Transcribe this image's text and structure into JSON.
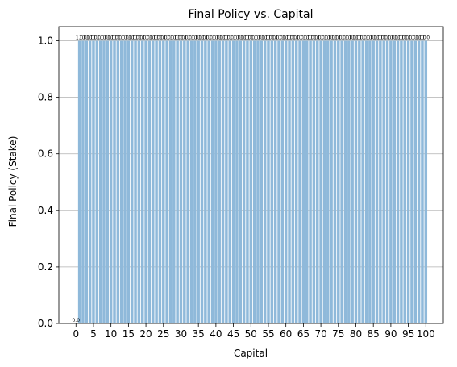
{
  "chart_data": {
    "type": "bar",
    "title": "Final Policy vs. Capital",
    "xlabel": "Capital",
    "ylabel": "Final Policy (Stake)",
    "x": [
      0,
      1,
      2,
      3,
      4,
      5,
      6,
      7,
      8,
      9,
      10,
      11,
      12,
      13,
      14,
      15,
      16,
      17,
      18,
      19,
      20,
      21,
      22,
      23,
      24,
      25,
      26,
      27,
      28,
      29,
      30,
      31,
      32,
      33,
      34,
      35,
      36,
      37,
      38,
      39,
      40,
      41,
      42,
      43,
      44,
      45,
      46,
      47,
      48,
      49,
      50,
      51,
      52,
      53,
      54,
      55,
      56,
      57,
      58,
      59,
      60,
      61,
      62,
      63,
      64,
      65,
      66,
      67,
      68,
      69,
      70,
      71,
      72,
      73,
      74,
      75,
      76,
      77,
      78,
      79,
      80,
      81,
      82,
      83,
      84,
      85,
      86,
      87,
      88,
      89,
      90,
      91,
      92,
      93,
      94,
      95,
      96,
      97,
      98,
      99,
      100
    ],
    "values": [
      0.0,
      1.0,
      1.0,
      1.0,
      1.0,
      1.0,
      1.0,
      1.0,
      1.0,
      1.0,
      1.0,
      1.0,
      1.0,
      1.0,
      1.0,
      1.0,
      1.0,
      1.0,
      1.0,
      1.0,
      1.0,
      1.0,
      1.0,
      1.0,
      1.0,
      1.0,
      1.0,
      1.0,
      1.0,
      1.0,
      1.0,
      1.0,
      1.0,
      1.0,
      1.0,
      1.0,
      1.0,
      1.0,
      1.0,
      1.0,
      1.0,
      1.0,
      1.0,
      1.0,
      1.0,
      1.0,
      1.0,
      1.0,
      1.0,
      1.0,
      1.0,
      1.0,
      1.0,
      1.0,
      1.0,
      1.0,
      1.0,
      1.0,
      1.0,
      1.0,
      1.0,
      1.0,
      1.0,
      1.0,
      1.0,
      1.0,
      1.0,
      1.0,
      1.0,
      1.0,
      1.0,
      1.0,
      1.0,
      1.0,
      1.0,
      1.0,
      1.0,
      1.0,
      1.0,
      1.0,
      1.0,
      1.0,
      1.0,
      1.0,
      1.0,
      1.0,
      1.0,
      1.0,
      1.0,
      1.0,
      1.0,
      1.0,
      1.0,
      1.0,
      1.0,
      1.0,
      1.0,
      1.0,
      1.0,
      1.0,
      1.0
    ],
    "data_labels": [
      "0.0",
      "1.0",
      "1.0",
      "1.0",
      "1.0",
      "1.0",
      "1.0",
      "1.0",
      "1.0",
      "1.0",
      "1.0",
      "1.0",
      "1.0",
      "1.0",
      "1.0",
      "1.0",
      "1.0",
      "1.0",
      "1.0",
      "1.0",
      "1.0",
      "1.0",
      "1.0",
      "1.0",
      "1.0",
      "1.0",
      "1.0",
      "1.0",
      "1.0",
      "1.0",
      "1.0",
      "1.0",
      "1.0",
      "1.0",
      "1.0",
      "1.0",
      "1.0",
      "1.0",
      "1.0",
      "1.0",
      "1.0",
      "1.0",
      "1.0",
      "1.0",
      "1.0",
      "1.0",
      "1.0",
      "1.0",
      "1.0",
      "1.0",
      "1.0",
      "1.0",
      "1.0",
      "1.0",
      "1.0",
      "1.0",
      "1.0",
      "1.0",
      "1.0",
      "1.0",
      "1.0",
      "1.0",
      "1.0",
      "1.0",
      "1.0",
      "1.0",
      "1.0",
      "1.0",
      "1.0",
      "1.0",
      "1.0",
      "1.0",
      "1.0",
      "1.0",
      "1.0",
      "1.0",
      "1.0",
      "1.0",
      "1.0",
      "1.0",
      "1.0",
      "1.0",
      "1.0",
      "1.0",
      "1.0",
      "1.0",
      "1.0",
      "1.0",
      "1.0",
      "1.0",
      "1.0",
      "1.0",
      "1.0",
      "1.0",
      "1.0",
      "1.0",
      "1.0",
      "1.0",
      "1.0",
      "1.0",
      "1.0"
    ],
    "xticks": [
      0,
      5,
      10,
      15,
      20,
      25,
      30,
      35,
      40,
      45,
      50,
      55,
      60,
      65,
      70,
      75,
      80,
      85,
      90,
      95,
      100
    ],
    "xtick_labels": [
      "0",
      "5",
      "10",
      "15",
      "20",
      "25",
      "30",
      "35",
      "40",
      "45",
      "50",
      "55",
      "60",
      "65",
      "70",
      "75",
      "80",
      "85",
      "90",
      "95",
      "100"
    ],
    "yticks": [
      0.0,
      0.2,
      0.4,
      0.6,
      0.8,
      1.0
    ],
    "ytick_labels": [
      "0.0",
      "0.2",
      "0.4",
      "0.6",
      "0.8",
      "1.0"
    ],
    "xlim": [
      -4.9,
      105
    ],
    "ylim": [
      0,
      1.05
    ],
    "grid": "y-axis",
    "bar_color": "#8fb9da",
    "grid_color": "#b0b0b0"
  }
}
